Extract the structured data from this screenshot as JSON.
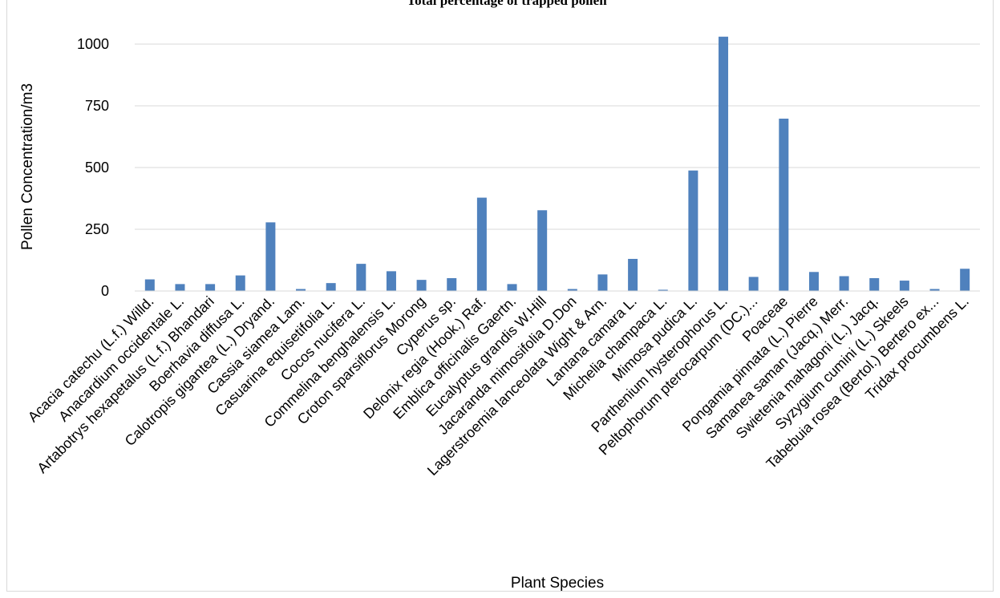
{
  "chart_data": {
    "type": "bar",
    "title": "Total percentage of trapped pollen",
    "xlabel": "Plant Species",
    "ylabel": "Pollen Concentration/m3",
    "ylim": [
      0,
      1050
    ],
    "yticks": [
      "0",
      "250",
      "500",
      "750",
      "1000"
    ],
    "grid": true,
    "bar_color": "#4f81bd",
    "categories": [
      "Acacia catechu (L.f.) Willd.",
      "Anacardium occidentale L.",
      "Artabotrys hexapetalus (L.f.) Bhandari",
      "Boerhavia diffusa L.",
      "Calotropis gigantea (L.) Dryand.",
      "Cassia siamea Lam.",
      "Casuarina equisetifolia L.",
      "Cocos nucifera L.",
      "Commelina benghalensis L.",
      "Croton sparsiflorus Morong",
      "Cyperus sp.",
      "Delonix regia (Hook.) Raf.",
      "Emblica officinalis Gaertn.",
      "Eucalyptus grandis W.Hill",
      "Jacaranda mimosifolia D.Don",
      "Lagerstroemia lanceolata Wight & Arn.",
      "Lantana camara L.",
      "Michelia champaca L.",
      "Mimosa pudica L.",
      "Parthenium hysterophorus L.",
      "Peltophorum pterocarpum (DC.)...",
      "Poaceae",
      "Pongamia pinnata (L.) Pierre",
      "Samanea saman (Jacq.) Merr.",
      "Swietenia mahagoni (L.) Jacq.",
      "Syzygium cumini (L.) Skeels",
      "Tabebuia rosea (Bertol.) Bertero ex...",
      "Tridax procumbens L."
    ],
    "values": [
      47,
      28,
      28,
      63,
      278,
      8,
      32,
      110,
      80,
      45,
      52,
      378,
      28,
      327,
      8,
      67,
      130,
      5,
      488,
      1030,
      57,
      698,
      77,
      60,
      52,
      42,
      8,
      90
    ]
  }
}
